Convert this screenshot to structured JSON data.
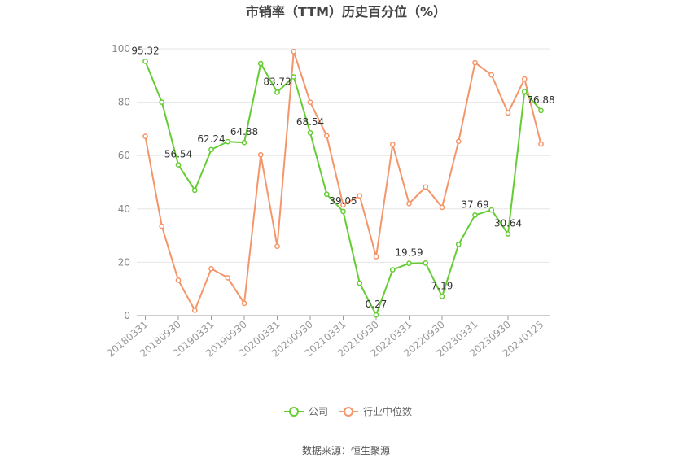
{
  "chart_data": {
    "type": "line",
    "title": "市销率（TTM）历史百分位（%）",
    "source": "数据来源：恒生聚源",
    "ylim": [
      0,
      100
    ],
    "yticks": [
      0,
      20,
      40,
      60,
      80,
      100
    ],
    "grid": true,
    "legend_position": "bottom",
    "x_tick_labels": [
      "20180331",
      "20180930",
      "20190331",
      "20190930",
      "20200331",
      "20200930",
      "20210331",
      "20210930",
      "20220331",
      "20220930",
      "20230331",
      "20230930",
      "20240125"
    ],
    "x": [
      "20180331",
      "20180630",
      "20180930",
      "20181231",
      "20190331",
      "20190630",
      "20190930",
      "20191231",
      "20200331",
      "20200630",
      "20200930",
      "20201231",
      "20210331",
      "20210630",
      "20210930",
      "20211231",
      "20220331",
      "20220630",
      "20220930",
      "20221231",
      "20230331",
      "20230630",
      "20230930",
      "20231231",
      "20240125"
    ],
    "series": [
      {
        "name": "公司",
        "color": "#66cc33",
        "values": [
          95.32,
          80.0,
          56.54,
          47.0,
          62.24,
          65.2,
          64.88,
          94.5,
          83.73,
          89.5,
          68.54,
          45.5,
          39.05,
          12.2,
          0.27,
          17.2,
          19.59,
          19.7,
          7.19,
          26.7,
          37.69,
          39.6,
          30.64,
          84.0,
          76.88
        ]
      },
      {
        "name": "行业中位数",
        "color": "#f4956a",
        "values": [
          67.2,
          33.5,
          13.3,
          2.0,
          17.6,
          14.2,
          4.6,
          60.3,
          26.0,
          99.0,
          80.0,
          67.4,
          41.5,
          44.9,
          22.1,
          64.2,
          42.0,
          48.2,
          40.6,
          65.3,
          94.8,
          90.2,
          76.0,
          88.7,
          64.3
        ]
      }
    ],
    "annotations": [
      {
        "series": "公司",
        "x": "20180331",
        "text": "95.32"
      },
      {
        "series": "公司",
        "x": "20180930",
        "text": "56.54"
      },
      {
        "series": "公司",
        "x": "20190331",
        "text": "62.24"
      },
      {
        "series": "公司",
        "x": "20190930",
        "text": "64.88"
      },
      {
        "series": "公司",
        "x": "20200331",
        "text": "83.73"
      },
      {
        "series": "公司",
        "x": "20200930",
        "text": "68.54"
      },
      {
        "series": "公司",
        "x": "20210331",
        "text": "39.05"
      },
      {
        "series": "公司",
        "x": "20210930",
        "text": "0.27"
      },
      {
        "series": "公司",
        "x": "20220331",
        "text": "19.59"
      },
      {
        "series": "公司",
        "x": "20220930",
        "text": "7.19"
      },
      {
        "series": "公司",
        "x": "20230331",
        "text": "37.69"
      },
      {
        "series": "公司",
        "x": "20230930",
        "text": "30.64"
      },
      {
        "series": "公司",
        "x": "20240125",
        "text": "76.88"
      }
    ]
  }
}
